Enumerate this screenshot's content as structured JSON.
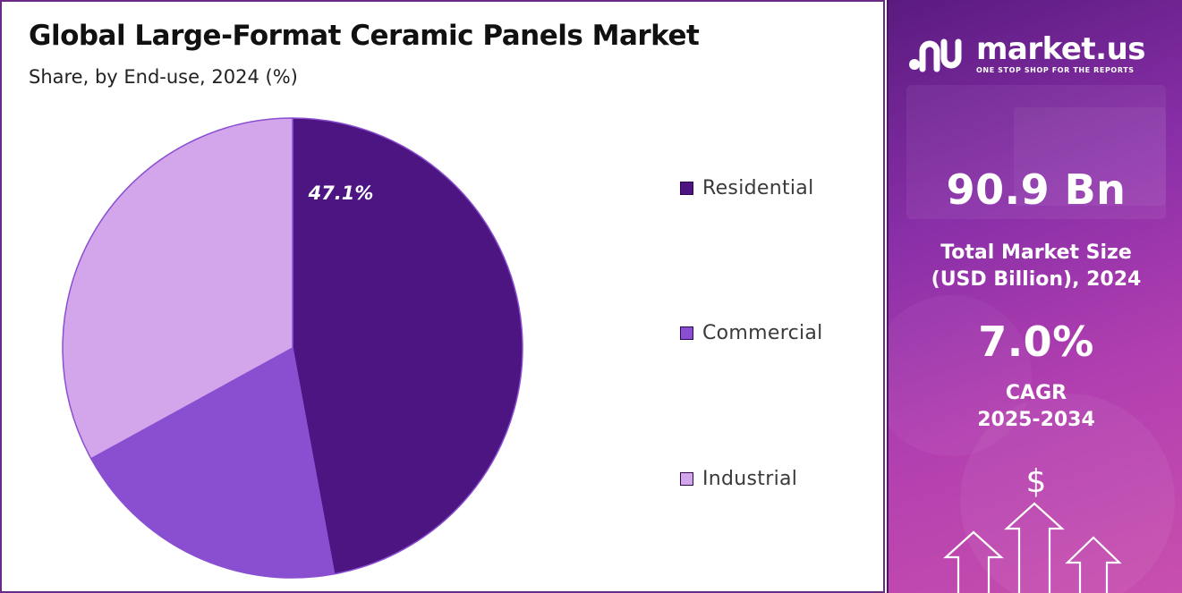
{
  "chart": {
    "title": "Global Large-Format Ceramic Panels Market",
    "subtitle": "Share, by End-use, 2024 (%)"
  },
  "chart_data": {
    "type": "pie",
    "title": "Global Large-Format Ceramic Panels Market",
    "subtitle": "Share, by End-use, 2024 (%)",
    "categories": [
      "Residential",
      "Commercial",
      "Industrial"
    ],
    "values": [
      47.1,
      19.9,
      33.0
    ],
    "data_labels": [
      "47.1%",
      "",
      ""
    ],
    "colors": [
      "#4d1581",
      "#8a4fd1",
      "#d3a6ec"
    ],
    "legend_position": "right",
    "start_angle": "top, clockwise"
  },
  "legend": {
    "items": [
      {
        "label": "Residential",
        "color": "#4d1581"
      },
      {
        "label": "Commercial",
        "color": "#8a4fd1"
      },
      {
        "label": "Industrial",
        "color": "#d3a6ec"
      }
    ]
  },
  "sidebar": {
    "logo_name": "market.us",
    "logo_tagline": "ONE STOP SHOP FOR THE REPORTS",
    "market_size_value": "90.9 Bn",
    "market_size_label_line1": "Total Market Size",
    "market_size_label_line2": "(USD Billion), 2024",
    "cagr_value": "7.0%",
    "cagr_label_line1": "CAGR",
    "cagr_label_line2": "2025-2034",
    "dollar_symbol": "$",
    "logo_icon": "market-us-logo-icon",
    "arrows_icon": "growth-arrows-icon"
  }
}
